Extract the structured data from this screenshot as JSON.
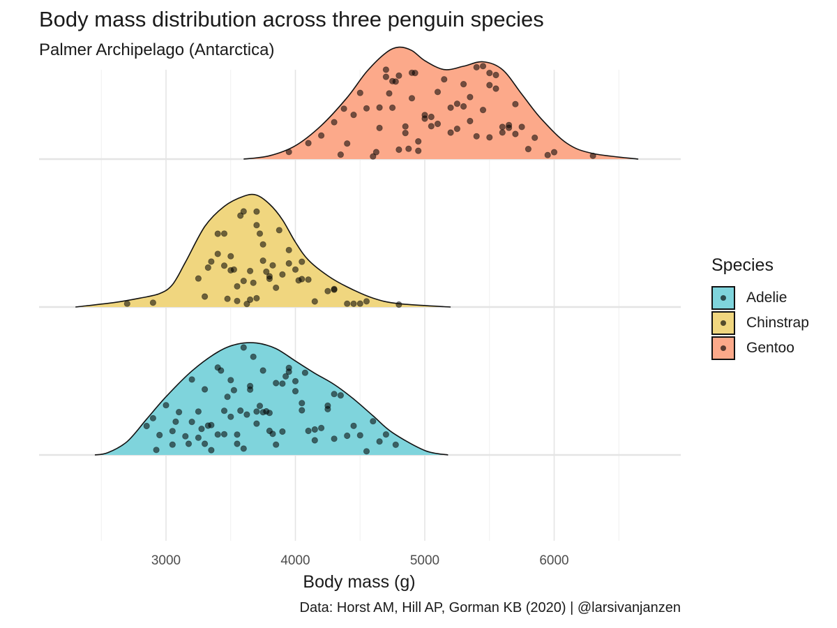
{
  "title": "Body mass distribution across three penguin species",
  "subtitle": "Palmer Archipelago (Antarctica)",
  "caption": "Data: Horst AM, Hill AP, Gorman KB (2020) | @larsivanjanzen",
  "chart_data": {
    "type": "ridgeline",
    "xlabel": "Body mass (g)",
    "ylabel": "",
    "xlim": [
      2250,
      6950
    ],
    "xticks": [
      3000,
      4000,
      5000,
      6000
    ],
    "x_minor_ticks": [
      2500,
      3500,
      4500,
      5500,
      6500
    ],
    "grid": true,
    "legend": {
      "title": "Species",
      "position": "right"
    },
    "series": [
      {
        "name": "Adelie",
        "color": "#7fd4dc",
        "density_x": [
          2450,
          2550,
          2700,
          2850,
          3000,
          3200,
          3400,
          3550,
          3700,
          3850,
          4000,
          4150,
          4300,
          4450,
          4600,
          4750,
          5000,
          5180
        ],
        "density_y": [
          0,
          0.02,
          0.12,
          0.32,
          0.52,
          0.75,
          0.92,
          0.99,
          1.0,
          0.95,
          0.84,
          0.73,
          0.63,
          0.5,
          0.35,
          0.2,
          0.04,
          0
        ],
        "points": [
          2850,
          2900,
          2925,
          2950,
          3000,
          3050,
          3050,
          3075,
          3100,
          3150,
          3175,
          3200,
          3200,
          3250,
          3250,
          3275,
          3300,
          3300,
          3325,
          3350,
          3350,
          3400,
          3400,
          3425,
          3450,
          3450,
          3475,
          3500,
          3500,
          3525,
          3550,
          3550,
          3575,
          3600,
          3600,
          3625,
          3650,
          3650,
          3675,
          3700,
          3700,
          3725,
          3750,
          3750,
          3775,
          3800,
          3800,
          3825,
          3850,
          3850,
          3900,
          3900,
          3925,
          3950,
          3950,
          4000,
          4000,
          4050,
          4050,
          4075,
          4100,
          4150,
          4150,
          4200,
          4250,
          4250,
          4300,
          4300,
          4350,
          4400,
          4450,
          4500,
          4550,
          4600,
          4650,
          4700,
          4775
        ]
      },
      {
        "name": "Chinstrap",
        "color": "#f0d67f",
        "density_x": [
          2300,
          2600,
          2800,
          2950,
          3050,
          3150,
          3300,
          3450,
          3600,
          3700,
          3800,
          3900,
          4000,
          4100,
          4250,
          4400,
          4600,
          4800,
          5200
        ],
        "density_y": [
          0,
          0.04,
          0.08,
          0.12,
          0.2,
          0.4,
          0.72,
          0.9,
          0.99,
          1.0,
          0.92,
          0.78,
          0.58,
          0.42,
          0.28,
          0.18,
          0.08,
          0.03,
          0
        ],
        "points": [
          2700,
          2900,
          3250,
          3300,
          3325,
          3350,
          3400,
          3400,
          3450,
          3450,
          3475,
          3500,
          3500,
          3525,
          3550,
          3550,
          3575,
          3600,
          3600,
          3625,
          3650,
          3650,
          3675,
          3700,
          3700,
          3700,
          3725,
          3750,
          3750,
          3775,
          3800,
          3800,
          3825,
          3850,
          3875,
          3900,
          3950,
          3950,
          4000,
          4025,
          4050,
          4050,
          4100,
          4150,
          4250,
          4300,
          4300,
          4400,
          4450,
          4500,
          4550,
          4800
        ]
      },
      {
        "name": "Gentoo",
        "color": "#fca98a",
        "density_x": [
          3600,
          3800,
          4000,
          4200,
          4400,
          4550,
          4700,
          4800,
          4900,
          5000,
          5150,
          5300,
          5450,
          5600,
          5750,
          5900,
          6100,
          6300,
          6650
        ],
        "density_y": [
          0,
          0.03,
          0.12,
          0.3,
          0.55,
          0.78,
          0.95,
          1.0,
          0.97,
          0.88,
          0.8,
          0.83,
          0.87,
          0.8,
          0.58,
          0.36,
          0.14,
          0.05,
          0
        ],
        "points": [
          3950,
          4100,
          4200,
          4300,
          4350,
          4375,
          4400,
          4450,
          4500,
          4550,
          4600,
          4625,
          4650,
          4650,
          4700,
          4700,
          4725,
          4750,
          4750,
          4775,
          4800,
          4800,
          4850,
          4850,
          4875,
          4900,
          4900,
          4925,
          4950,
          4950,
          5000,
          5000,
          5050,
          5050,
          5100,
          5100,
          5150,
          5200,
          5200,
          5250,
          5250,
          5300,
          5300,
          5350,
          5350,
          5400,
          5400,
          5450,
          5450,
          5500,
          5500,
          5500,
          5550,
          5550,
          5600,
          5600,
          5650,
          5650,
          5700,
          5700,
          5750,
          5800,
          5850,
          5950,
          6000,
          6300
        ]
      }
    ]
  }
}
